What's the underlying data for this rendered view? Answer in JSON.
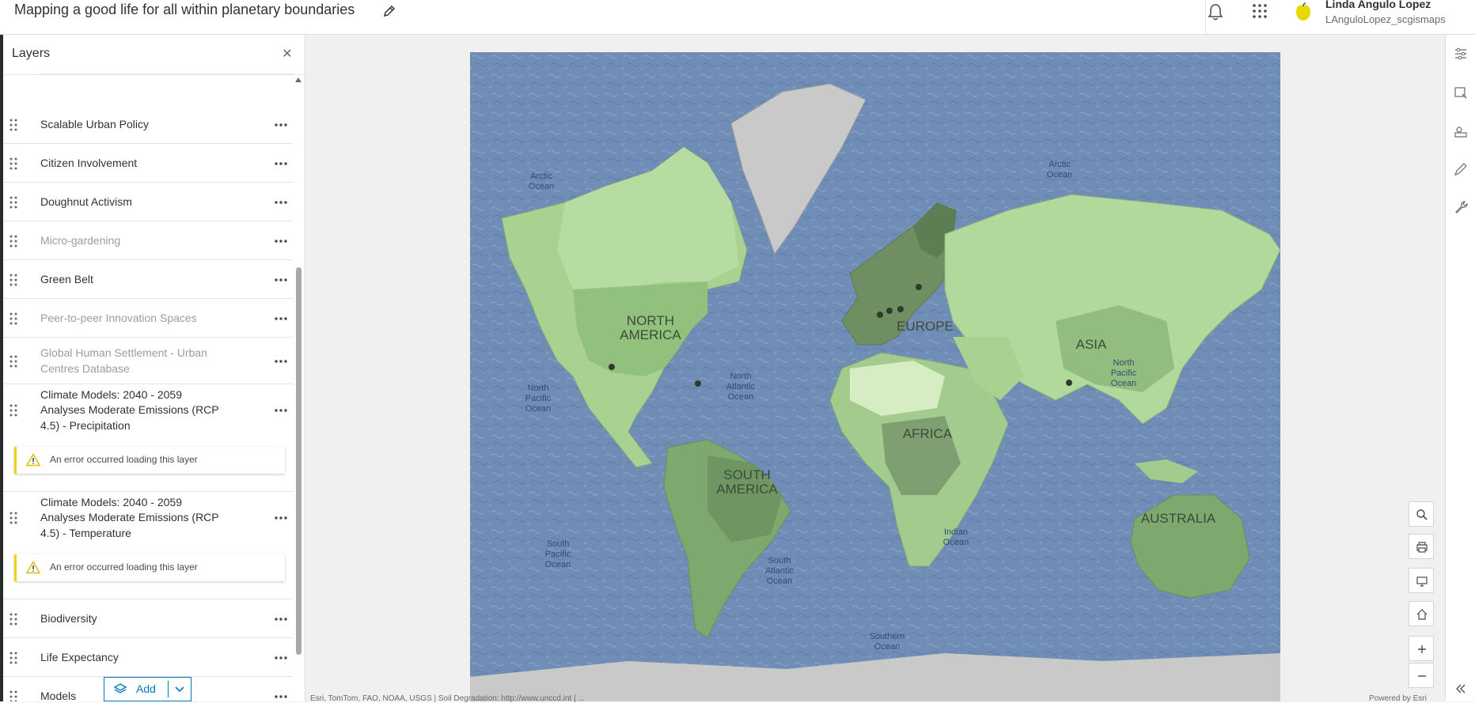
{
  "app": {
    "title": "Mapping a good life for all within planetary boundaries",
    "user_name": "Linda Angulo Lopez",
    "user_id": "LAnguloLopez_scgismaps"
  },
  "icons": {
    "edit": "pencil-icon",
    "notifications": "bell-icon",
    "apps": "app-launcher-grid-icon",
    "avatar": "user-avatar-icon",
    "warning": "warning-triangle-icon"
  },
  "colors": {
    "accent": "#0079c1",
    "warning": "#edd317",
    "ocean": "#6d8bb3",
    "land_light": "#b6dba0",
    "land_dark": "#5c7a52",
    "ice": "#c9c9c9"
  },
  "layers_panel": {
    "title": "Layers",
    "add_label": "Add",
    "layers": [
      {
        "label": "Scalable Urban Policy",
        "dimmed": false
      },
      {
        "label": "Citizen Involvement",
        "dimmed": false
      },
      {
        "label": "Doughnut Activism",
        "dimmed": false
      },
      {
        "label": "Micro-gardening",
        "dimmed": true
      },
      {
        "label": "Green Belt",
        "dimmed": false
      },
      {
        "label": "Peer-to-peer Innovation Spaces",
        "dimmed": true
      },
      {
        "label": "Global Human Settlement - Urban Centres Database",
        "dimmed": true
      },
      {
        "label": "Climate Models: 2040 - 2059 Analyses Moderate Emissions (RCP 4.5) - Precipitation",
        "dimmed": false,
        "error": "An error occurred loading this layer"
      },
      {
        "label": "Climate Models: 2040 - 2059 Analyses Moderate Emissions (RCP 4.5) - Temperature",
        "dimmed": false,
        "error": "An error occurred loading this layer"
      },
      {
        "label": "Biodiversity",
        "dimmed": false
      },
      {
        "label": "Life Expectancy",
        "dimmed": false
      },
      {
        "label": "Models",
        "dimmed": false
      }
    ]
  },
  "map": {
    "continent_labels": {
      "north_america": "NORTH AMERICA",
      "south_america": "SOUTH AMERICA",
      "europe": "EUROPE",
      "africa": "AFRICA",
      "asia": "ASIA",
      "australia": "AUSTRALIA"
    },
    "ocean_labels": {
      "arctic_left": "Arctic Ocean",
      "arctic_right": "Arctic Ocean",
      "north_atlantic": "North Atlantic Ocean",
      "north_pacific_left": "North Pacific Ocean",
      "north_pacific_right": "North Pacific Ocean",
      "south_pacific": "South Pacific Ocean",
      "south_atlantic": "South Atlantic Ocean",
      "indian": "Indian Ocean",
      "southern": "Southern Ocean"
    },
    "attribution": "Esri, TomTom, FAO, NOAA, USGS | Soil Degradation: http://www.unccd.int | ...",
    "powered_by": "Powered by Esri",
    "tools": [
      "search",
      "print",
      "fullscreen",
      "home",
      "zoom-in",
      "zoom-out"
    ]
  }
}
